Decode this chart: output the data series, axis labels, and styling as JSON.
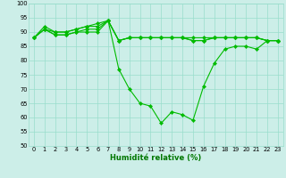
{
  "title": "",
  "xlabel": "Humidité relative (%)",
  "ylabel": "",
  "background_color": "#cceee8",
  "grid_color": "#99ddcc",
  "line_color": "#00bb00",
  "marker_color": "#00bb00",
  "ylim": [
    50,
    100
  ],
  "xlim": [
    -0.5,
    23.5
  ],
  "yticks": [
    50,
    55,
    60,
    65,
    70,
    75,
    80,
    85,
    90,
    95,
    100
  ],
  "xticks": [
    0,
    1,
    2,
    3,
    4,
    5,
    6,
    7,
    8,
    9,
    10,
    11,
    12,
    13,
    14,
    15,
    16,
    17,
    18,
    19,
    20,
    21,
    22,
    23
  ],
  "series": [
    [
      88,
      91,
      89,
      89,
      90,
      91,
      91,
      94,
      87,
      88,
      88,
      88,
      88,
      88,
      88,
      88,
      88,
      88,
      88,
      88,
      88,
      88,
      87,
      87
    ],
    [
      88,
      91,
      90,
      90,
      91,
      92,
      92,
      94,
      87,
      88,
      88,
      88,
      88,
      88,
      88,
      87,
      87,
      88,
      88,
      88,
      88,
      88,
      87,
      87
    ],
    [
      88,
      92,
      90,
      90,
      91,
      92,
      93,
      94,
      87,
      88,
      88,
      88,
      88,
      88,
      88,
      87,
      87,
      88,
      88,
      88,
      88,
      88,
      87,
      87
    ],
    [
      88,
      91,
      89,
      89,
      90,
      90,
      90,
      94,
      77,
      70,
      65,
      64,
      58,
      62,
      61,
      59,
      71,
      79,
      84,
      85,
      85,
      84,
      87,
      87
    ]
  ],
  "linewidth": 0.8,
  "markersize": 2.2,
  "xlabel_fontsize": 6.0,
  "tick_fontsize": 4.8
}
